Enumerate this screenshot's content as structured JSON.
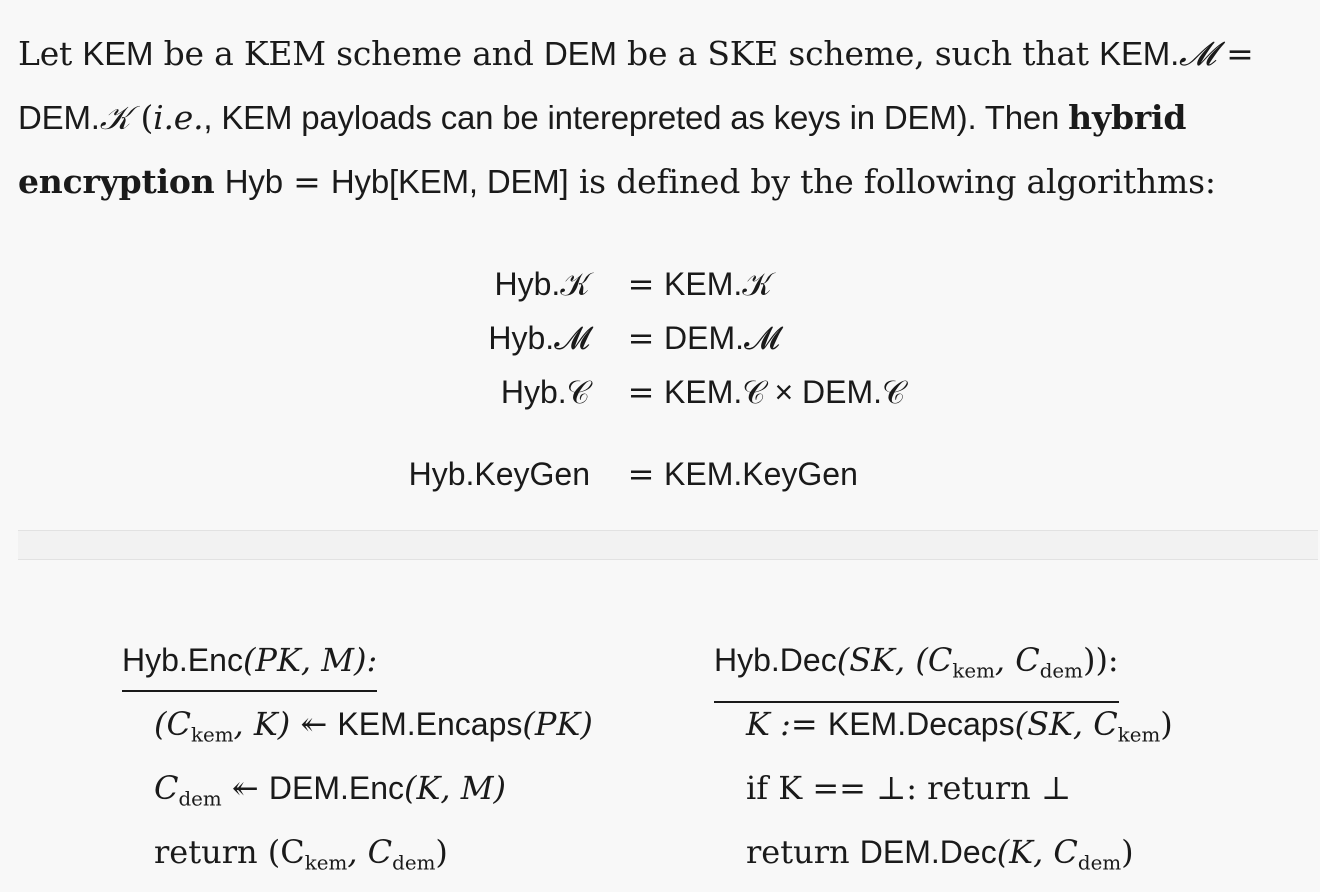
{
  "paragraph": {
    "p1": "Let ",
    "kem1": "KEM",
    "p2": " be a KEM scheme and ",
    "dem1": "DEM",
    "p3": " be a SKE scheme, such that ",
    "kemM": "KEM.",
    "calM1": "𝓜",
    "eq1": " = ",
    "demK": "DEM.",
    "calK1": "𝒦",
    "p4": " (",
    "ie": "i.e.",
    "p5": ", KEM payloads can be interepreted as keys in DEM). Then ",
    "bold": "hybrid encryption",
    "p6": " ",
    "hyb": "Hyb",
    "eq2": " = ",
    "hybfull": "Hyb[KEM, DEM]",
    "p7": " is defined by the following algorithms:"
  },
  "definitions": [
    {
      "lhs": "Hyb.𝒦",
      "eq": "=",
      "rhs": "KEM.𝒦"
    },
    {
      "lhs": "Hyb.𝓜",
      "eq": "=",
      "rhs": "DEM.𝓜"
    },
    {
      "lhs": "Hyb.𝒞",
      "eq": "=",
      "rhs": "KEM.𝒞 × DEM.𝒞"
    },
    {
      "lhs": "Hyb.KeyGen",
      "eq": "=",
      "rhs": "KEM.KeyGen"
    }
  ],
  "enc": {
    "head_name": "Hyb.Enc",
    "head_args": "(PK, M):",
    "line1_a": "(C",
    "line1_sub": "kem",
    "line1_b": ", K) ↞ ",
    "line1_c": "KEM.Encaps",
    "line1_d": "(PK)",
    "line2_a": "C",
    "line2_sub": "dem",
    "line2_b": " ↞ ",
    "line2_c": "DEM.Enc",
    "line2_d": "(K, M)",
    "line3_a": "return (C",
    "line3_sub1": "kem",
    "line3_b": ", C",
    "line3_sub2": "dem",
    "line3_c": ")"
  },
  "dec": {
    "head_name": "Hyb.Dec",
    "head_a": "(SK, (C",
    "head_sub1": "kem",
    "head_b": ", C",
    "head_sub2": "dem",
    "head_c": ")):",
    "line1_a": "K := ",
    "line1_b": "KEM.Decaps",
    "line1_c": "(SK, C",
    "line1_sub": "kem",
    "line1_d": ")",
    "line2": "if K == ⊥: return ⊥",
    "line3_a": "return ",
    "line3_b": "DEM.Dec",
    "line3_c": "(K, C",
    "line3_sub": "dem",
    "line3_d": ")"
  }
}
